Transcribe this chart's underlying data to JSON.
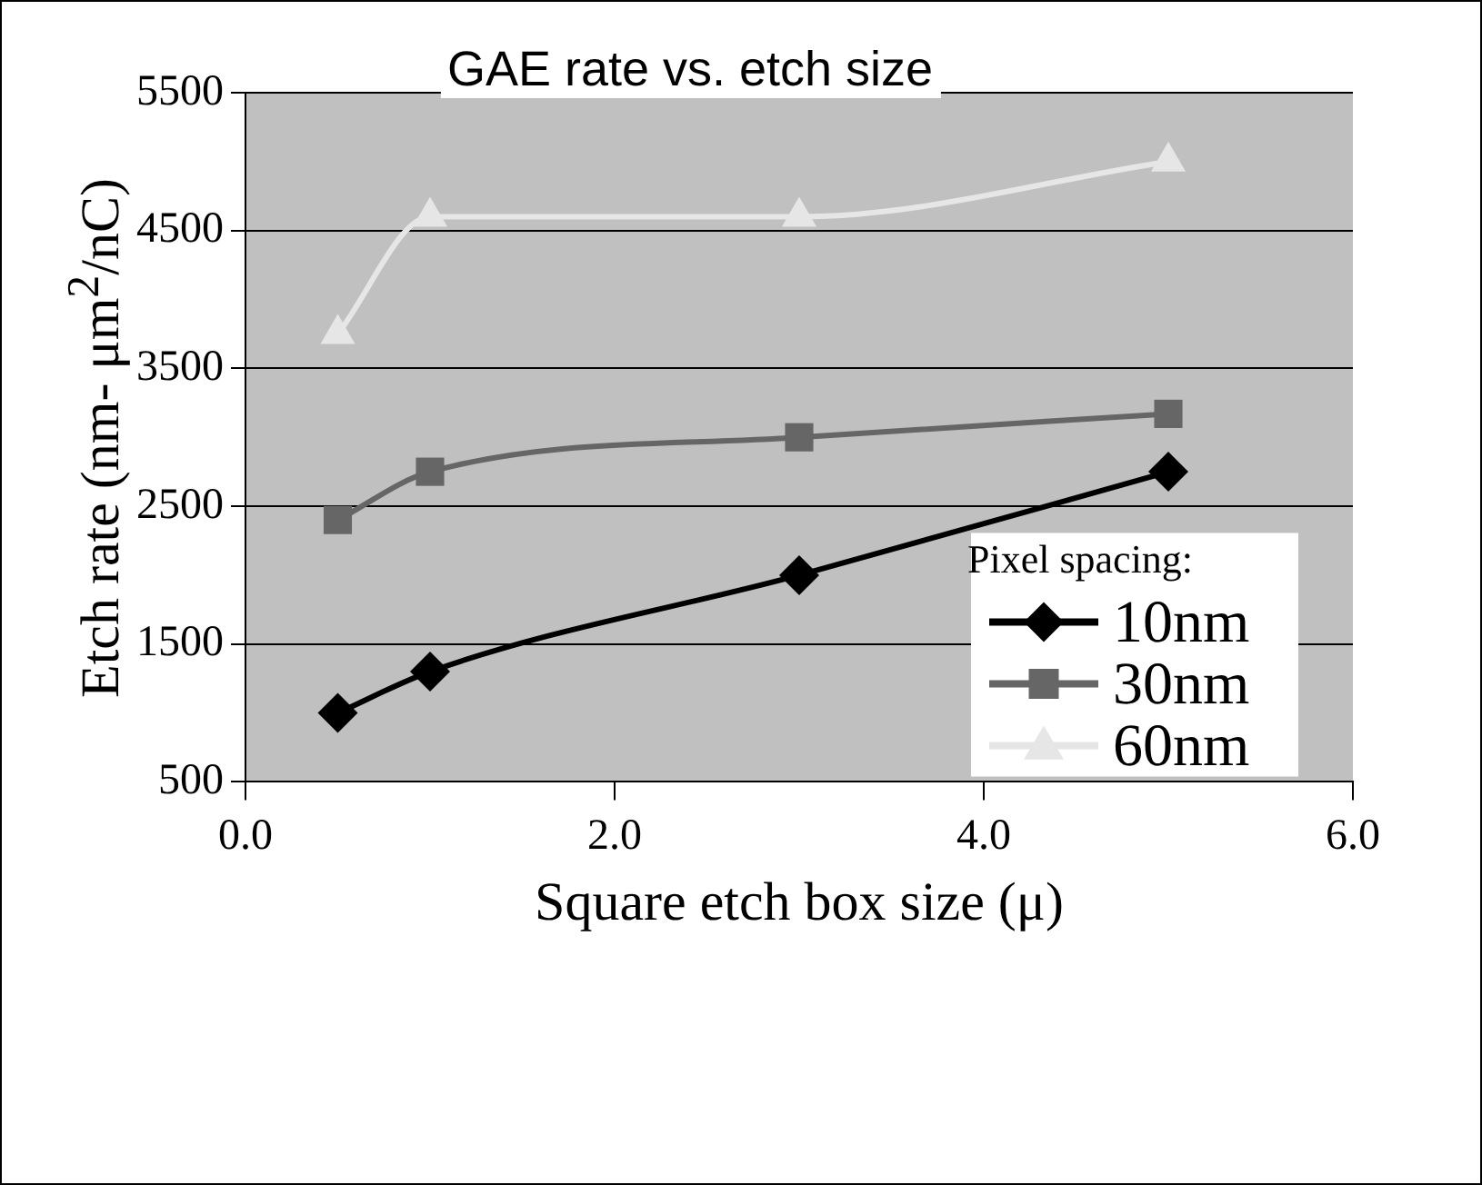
{
  "chart_data": {
    "type": "line",
    "title": "GAE rate vs. etch size",
    "xlabel": "Square etch box size (μ)",
    "ylabel": "Etch rate (nm- μm$^{2}$/nC)",
    "legend_title": "Pixel spacing:",
    "x": [
      0.5,
      1,
      3,
      5
    ],
    "series": [
      {
        "name": "10nm",
        "color": "#000000",
        "marker": "diamond",
        "values": [
          1000,
          1300,
          2000,
          2750
        ]
      },
      {
        "name": "30nm",
        "color": "#666666",
        "marker": "square",
        "values": [
          2400,
          2750,
          3000,
          3170
        ]
      },
      {
        "name": "60nm",
        "color": "#e6e6e6",
        "marker": "triangle",
        "values": [
          3750,
          4600,
          4600,
          5000
        ]
      }
    ],
    "xlim": [
      0,
      6
    ],
    "xticks": [
      {
        "value": 0,
        "label": "0.0"
      },
      {
        "value": 2,
        "label": "2.0"
      },
      {
        "value": 4,
        "label": "4.0"
      },
      {
        "value": 6,
        "label": "6.0"
      }
    ],
    "ylim": [
      500,
      5500
    ],
    "yticks": [
      500,
      1500,
      2500,
      3500,
      4500,
      5500
    ],
    "grid": "y",
    "legend": "bottom right",
    "line_style": "solid"
  }
}
